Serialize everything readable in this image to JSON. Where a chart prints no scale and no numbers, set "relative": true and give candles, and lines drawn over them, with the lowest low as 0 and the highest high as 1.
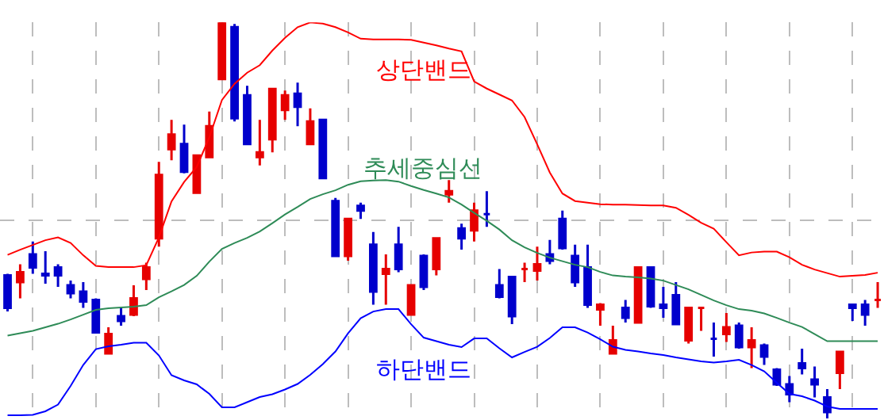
{
  "chart_data": {
    "type": "candlestick",
    "relative": true,
    "grid": true,
    "categories": [
      null,
      null,
      null,
      null,
      null,
      null,
      null,
      null,
      null,
      null,
      null,
      null,
      null,
      null,
      null,
      null,
      null,
      null,
      null,
      null,
      null,
      null,
      null,
      null,
      null,
      null,
      null,
      null,
      null,
      null,
      null,
      null,
      null,
      null,
      null,
      null,
      null,
      null,
      null,
      null,
      null,
      null,
      null,
      null,
      null,
      null,
      null,
      null,
      null,
      null,
      null,
      null,
      null,
      null,
      null,
      null,
      null,
      null,
      null,
      null,
      null,
      null,
      null,
      null,
      null,
      null,
      null,
      null,
      null,
      null
    ],
    "ohlc": [
      [
        0.361,
        0.365,
        0.27,
        0.279
      ],
      [
        0.344,
        0.389,
        0.303,
        0.369
      ],
      [
        0.414,
        0.447,
        0.365,
        0.381
      ],
      [
        0.365,
        0.422,
        0.34,
        0.361
      ],
      [
        0.381,
        0.389,
        0.332,
        0.361
      ],
      [
        0.336,
        0.348,
        0.303,
        0.316
      ],
      [
        0.32,
        0.344,
        0.279,
        0.295
      ],
      [
        0.299,
        0.303,
        0.217,
        0.217
      ],
      [
        0.164,
        0.23,
        0.164,
        0.213
      ],
      [
        0.258,
        0.279,
        0.234,
        0.246
      ],
      [
        0.262,
        0.336,
        0.258,
        0.303
      ],
      [
        0.352,
        0.393,
        0.324,
        0.381
      ],
      [
        0.455,
        0.648,
        0.434,
        0.615
      ],
      [
        0.68,
        0.754,
        0.652,
        0.717
      ],
      [
        0.693,
        0.742,
        0.619,
        0.623
      ],
      [
        0.57,
        0.664,
        0.57,
        0.664
      ],
      [
        0.66,
        0.775,
        0.66,
        0.738
      ],
      [
        0.857,
        1,
        0.857,
        1
      ],
      [
        0.988,
        0.996,
        0.75,
        0.758
      ],
      [
        0.816,
        0.84,
        0.693,
        0.693
      ],
      [
        0.66,
        0.754,
        0.639,
        0.672
      ],
      [
        0.705,
        0.832,
        0.672,
        0.832
      ],
      [
        0.779,
        0.828,
        0.754,
        0.816
      ],
      [
        0.82,
        0.848,
        0.738,
        0.787
      ],
      [
        0.693,
        0.783,
        0.693,
        0.75
      ],
      [
        0.754,
        0.754,
        0.607,
        0.607
      ],
      [
        0.549,
        0.557,
        0.41,
        0.41
      ],
      [
        0.41,
        0.504,
        0.398,
        0.504
      ],
      [
        0.537,
        0.545,
        0.504,
        0.525
      ],
      [
        0.439,
        0.471,
        0.287,
        0.32
      ],
      [
        0.365,
        0.414,
        0.287,
        0.377
      ],
      [
        0.439,
        0.484,
        0.369,
        0.377
      ],
      [
        0.262,
        0.336,
        0.262,
        0.336
      ],
      [
        0.41,
        0.414,
        0.324,
        0.332
      ],
      [
        0.377,
        0.455,
        0.361,
        0.455
      ],
      [
        0.566,
        0.602,
        0.545,
        0.574
      ],
      [
        0.48,
        0.492,
        0.426,
        0.455
      ],
      [
        0.475,
        0.545,
        0.447,
        0.525
      ],
      [
        0.516,
        0.574,
        0.484,
        0.516
      ],
      [
        0.336,
        0.377,
        0.303,
        0.307
      ],
      [
        0.357,
        0.357,
        0.238,
        0.258
      ],
      [
        0.377,
        0.393,
        0.344,
        0.377
      ],
      [
        0.373,
        0.434,
        0.348,
        0.389
      ],
      [
        0.414,
        0.451,
        0.389,
        0.398
      ],
      [
        0.504,
        0.525,
        0.426,
        0.43
      ],
      [
        0.41,
        0.439,
        0.332,
        0.344
      ],
      [
        0.381,
        0.439,
        0.279,
        0.287
      ],
      [
        0.275,
        0.291,
        0.234,
        0.287
      ],
      [
        0.164,
        0.234,
        0.164,
        0.197
      ],
      [
        0.279,
        0.299,
        0.242,
        0.254
      ],
      [
        0.242,
        0.381,
        0.242,
        0.381
      ],
      [
        0.381,
        0.381,
        0.279,
        0.283
      ],
      [
        0.287,
        0.332,
        0.254,
        0.279
      ],
      [
        0.311,
        0.344,
        0.238,
        0.238
      ],
      [
        0.197,
        0.279,
        0.189,
        0.279
      ],
      [
        0.279,
        0.279,
        0.221,
        0.279
      ],
      [
        0.201,
        0.242,
        0.156,
        0.201
      ],
      [
        0.213,
        0.266,
        0.193,
        0.23
      ],
      [
        0.234,
        0.242,
        0.176,
        0.18
      ],
      [
        0.18,
        0.23,
        0.127,
        0.197
      ],
      [
        0.184,
        0.189,
        0.135,
        0.156
      ],
      [
        0.123,
        0.127,
        0.082,
        0.086
      ],
      [
        0.086,
        0.107,
        0.041,
        0.061
      ],
      [
        0.139,
        0.176,
        0.111,
        0.127
      ],
      [
        0.098,
        0.131,
        0.053,
        0.086
      ],
      [
        0.053,
        0.074,
        0,
        0.016
      ],
      [
        0.115,
        0.168,
        0.074,
        0.168
      ],
      [
        0.287,
        0.287,
        0.246,
        0.279
      ],
      [
        0.287,
        0.299,
        0.234,
        0.262
      ],
      [
        0.299,
        0.344,
        0.279,
        0.299
      ]
    ],
    "colors": [
      "#0000cc",
      "#e60000",
      "#0000cc",
      "#0000cc",
      "#0000cc",
      "#0000cc",
      "#0000cc",
      "#0000cc",
      "#e60000",
      "#0000cc",
      "#e60000",
      "#e60000",
      "#e60000",
      "#e60000",
      "#0000cc",
      "#e60000",
      "#e60000",
      "#e60000",
      "#0000cc",
      "#0000cc",
      "#e60000",
      "#e60000",
      "#e60000",
      "#0000cc",
      "#e60000",
      "#0000cc",
      "#0000cc",
      "#e60000",
      "#0000cc",
      "#0000cc",
      "#e60000",
      "#0000cc",
      "#e60000",
      "#0000cc",
      "#e60000",
      "#e60000",
      "#0000cc",
      "#e60000",
      "#0000cc",
      "#0000cc",
      "#0000cc",
      "#e60000",
      "#e60000",
      "#0000cc",
      "#0000cc",
      "#0000cc",
      "#0000cc",
      "#e60000",
      "#e60000",
      "#0000cc",
      "#e60000",
      "#0000cc",
      "#0000cc",
      "#0000cc",
      "#e60000",
      "#e60000",
      "#0000cc",
      "#e60000",
      "#0000cc",
      "#e60000",
      "#0000cc",
      "#0000cc",
      "#0000cc",
      "#0000cc",
      "#0000cc",
      "#0000cc",
      "#e60000",
      "#0000cc",
      "#0000cc",
      "#e60000"
    ],
    "series": [
      {
        "name": "상단밴드",
        "type": "line",
        "color": "#ff0000",
        "values": [
          0.413,
          0.426,
          0.438,
          0.45,
          0.457,
          0.443,
          0.412,
          0.385,
          0.382,
          0.382,
          0.382,
          0.387,
          0.457,
          0.548,
          0.597,
          0.635,
          0.71,
          0.804,
          0.845,
          0.873,
          0.892,
          0.929,
          0.961,
          0.988,
          1.0,
          0.997,
          0.988,
          0.975,
          0.959,
          0.957,
          0.957,
          0.957,
          0.956,
          0.949,
          0.942,
          0.934,
          0.927,
          0.851,
          0.833,
          0.818,
          0.803,
          0.761,
          0.692,
          0.621,
          0.568,
          0.549,
          0.545,
          0.541,
          0.54,
          0.54,
          0.539,
          0.538,
          0.538,
          0.532,
          0.514,
          0.494,
          0.479,
          0.445,
          0.412,
          0.419,
          0.421,
          0.421,
          0.407,
          0.388,
          0.376,
          0.367,
          0.358,
          0.36,
          0.362,
          0.368
        ]
      },
      {
        "name": "추세중심선",
        "type": "line",
        "color": "#2e8b57",
        "values": [
          0.209,
          0.215,
          0.221,
          0.23,
          0.239,
          0.25,
          0.262,
          0.274,
          0.278,
          0.28,
          0.282,
          0.286,
          0.306,
          0.321,
          0.337,
          0.36,
          0.396,
          0.428,
          0.443,
          0.456,
          0.472,
          0.493,
          0.515,
          0.534,
          0.554,
          0.566,
          0.576,
          0.59,
          0.599,
          0.601,
          0.602,
          0.598,
          0.587,
          0.577,
          0.568,
          0.558,
          0.54,
          0.519,
          0.499,
          0.477,
          0.45,
          0.432,
          0.418,
          0.406,
          0.397,
          0.388,
          0.382,
          0.37,
          0.361,
          0.358,
          0.356,
          0.353,
          0.348,
          0.337,
          0.326,
          0.312,
          0.298,
          0.286,
          0.276,
          0.272,
          0.265,
          0.254,
          0.242,
          0.231,
          0.213,
          0.195,
          0.195,
          0.195,
          0.195,
          0.195
        ]
      },
      {
        "name": "하단밴드",
        "type": "line",
        "color": "#0000ff",
        "values": [
          0.008,
          0.008,
          0.009,
          0.018,
          0.035,
          0.082,
          0.135,
          0.175,
          0.182,
          0.186,
          0.191,
          0.191,
          0.159,
          0.109,
          0.096,
          0.086,
          0.062,
          0.028,
          0.028,
          0.041,
          0.054,
          0.061,
          0.073,
          0.087,
          0.11,
          0.137,
          0.169,
          0.215,
          0.253,
          0.27,
          0.276,
          0.276,
          0.238,
          0.204,
          0.195,
          0.186,
          0.18,
          0.202,
          0.202,
          0.177,
          0.154,
          0.168,
          0.181,
          0.203,
          0.23,
          0.23,
          0.217,
          0.2,
          0.181,
          0.173,
          0.169,
          0.164,
          0.16,
          0.154,
          0.149,
          0.144,
          0.141,
          0.144,
          0.148,
          0.135,
          0.119,
          0.09,
          0.062,
          0.056,
          0.045,
          0.03,
          0.024,
          0.024,
          0.024,
          0.024
        ]
      }
    ]
  }
}
